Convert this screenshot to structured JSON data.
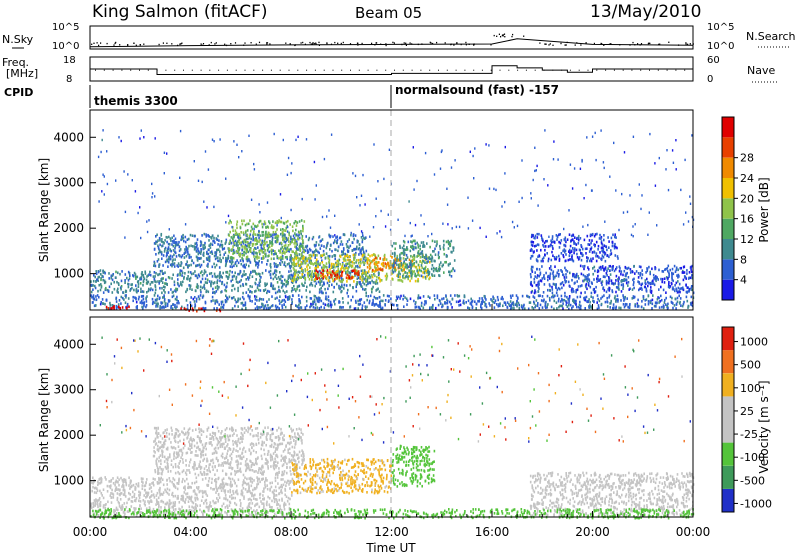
{
  "header": {
    "station": "King Salmon (fitACF)",
    "beam": "Beam 05",
    "date": "13/May/2010"
  },
  "panels": {
    "nsky_label": "N.Sky",
    "nsearch_label": "N.Search",
    "freq_label_1": "Freq.",
    "freq_label_2": "[MHz]",
    "nave_label": "Nave",
    "cpid_label": "CPID",
    "nsky_ticks": [
      "10^5",
      "10^0"
    ],
    "nsearch_ticks": [
      "10^5",
      "10^0"
    ],
    "freq_ticks": [
      "18",
      "8"
    ],
    "nave_ticks": [
      "60",
      "0"
    ],
    "cpid_mode_1": "themis 3300",
    "cpid_mode_2": "normalsound (fast) -157"
  },
  "axes": {
    "ylabel": "Slant Range [km]",
    "xlabel": "Time UT",
    "y_ticks": [
      "1000",
      "2000",
      "3000",
      "4000"
    ],
    "x_ticks": [
      "00:00",
      "04:00",
      "08:00",
      "12:00",
      "16:00",
      "20:00",
      "00:00"
    ]
  },
  "colorbars": {
    "power": {
      "label": "Power [dB]",
      "ticks": [
        "4",
        "8",
        "12",
        "16",
        "20",
        "24",
        "28"
      ],
      "colors": [
        "#1a1ae6",
        "#2d5fd2",
        "#3f8a8f",
        "#4fa862",
        "#8fc34a",
        "#f0c000",
        "#f08a00",
        "#e84000",
        "#e00000"
      ]
    },
    "velocity": {
      "label": "Velocity [m s⁻¹]",
      "ticks": [
        "1000",
        "500",
        "100",
        "25",
        "-25",
        "-100",
        "-500",
        "-1000"
      ],
      "colors": [
        "#2030c8",
        "#3e9a5a",
        "#54c43a",
        "#c4c4c4",
        "#c4c4c4",
        "#f0b020",
        "#f07020",
        "#e02010"
      ]
    }
  },
  "chart_data": [
    {
      "type": "line",
      "title": "N.Sky / N.Search",
      "x": [
        "00:00",
        "04:00",
        "08:00",
        "12:00",
        "16:00",
        "17:00",
        "20:00",
        "24:00"
      ],
      "y_scale": "log",
      "ylim": [
        1,
        100000
      ],
      "series": [
        {
          "name": "N.Sky",
          "values": [
            2,
            4,
            6,
            8,
            10,
            200,
            8,
            5
          ]
        }
      ]
    },
    {
      "type": "line",
      "title": "Freq / Nave",
      "x": [
        "00:00",
        "02:40",
        "12:00",
        "16:00",
        "17:00",
        "18:00",
        "19:00",
        "20:00",
        "24:00"
      ],
      "series": [
        {
          "name": "Freq. [MHz]",
          "values": [
            13,
            10.5,
            11,
            14.5,
            13.5,
            12.5,
            11.5,
            13,
            13
          ]
        },
        {
          "name": "Nave",
          "values": [
            30,
            25,
            30,
            30,
            30,
            30,
            30,
            30,
            30
          ]
        }
      ],
      "cpid_modes": [
        {
          "start": "00:00",
          "label": "themis 3300"
        },
        {
          "start": "12:00",
          "label": "normalsound (fast) -157"
        }
      ]
    },
    {
      "type": "heatmap",
      "title": "Power [dB]",
      "xlim": [
        "00:00",
        "24:00"
      ],
      "ylim": [
        200,
        4600
      ],
      "regions": [
        {
          "t_start": 0.0,
          "t_end": 24.0,
          "r_start": 250,
          "r_end": 550,
          "value": 6
        },
        {
          "t_start": 0.0,
          "t_end": 11.5,
          "r_start": 600,
          "r_end": 1100,
          "value": 8
        },
        {
          "t_start": 2.5,
          "t_end": 11.0,
          "r_start": 1150,
          "r_end": 1900,
          "value": 7
        },
        {
          "t_start": 5.5,
          "t_end": 8.5,
          "r_start": 1350,
          "r_end": 2200,
          "value": 14
        },
        {
          "t_start": 8.0,
          "t_end": 13.5,
          "r_start": 850,
          "r_end": 1450,
          "value": 16
        },
        {
          "t_start": 8.8,
          "t_end": 10.8,
          "r_start": 900,
          "r_end": 1100,
          "value": 26
        },
        {
          "t_start": 11.0,
          "t_end": 12.8,
          "r_start": 1100,
          "r_end": 1400,
          "value": 22
        },
        {
          "t_start": 12.0,
          "t_end": 14.5,
          "r_start": 950,
          "r_end": 1750,
          "value": 9
        },
        {
          "t_start": 0.6,
          "t_end": 1.6,
          "r_start": 250,
          "r_end": 350,
          "value": 28
        },
        {
          "t_start": 3.3,
          "t_end": 5.2,
          "r_start": 200,
          "r_end": 260,
          "value": 28
        },
        {
          "t_start": 17.5,
          "t_end": 24.0,
          "r_start": 600,
          "r_end": 1200,
          "value": 5
        },
        {
          "t_start": 17.5,
          "t_end": 21.0,
          "r_start": 1300,
          "r_end": 1900,
          "value": 4
        }
      ]
    },
    {
      "type": "heatmap",
      "title": "Velocity [m s⁻¹]",
      "xlim": [
        "00:00",
        "24:00"
      ],
      "ylim": [
        200,
        4600
      ],
      "regions": [
        {
          "t_start": 0.0,
          "t_end": 8.0,
          "r_start": 250,
          "r_end": 1100,
          "value": 0
        },
        {
          "t_start": 2.5,
          "t_end": 8.5,
          "r_start": 1150,
          "r_end": 2200,
          "value": 0
        },
        {
          "t_start": 8.0,
          "t_end": 12.0,
          "r_start": 750,
          "r_end": 1500,
          "value": -100
        },
        {
          "t_start": 12.0,
          "t_end": 13.7,
          "r_start": 900,
          "r_end": 1800,
          "value": 150
        },
        {
          "t_start": 17.5,
          "t_end": 24.0,
          "r_start": 250,
          "r_end": 1200,
          "value": 0
        },
        {
          "t_start": 0.0,
          "t_end": 24.0,
          "r_start": 200,
          "r_end": 400,
          "value": 200
        }
      ]
    }
  ]
}
